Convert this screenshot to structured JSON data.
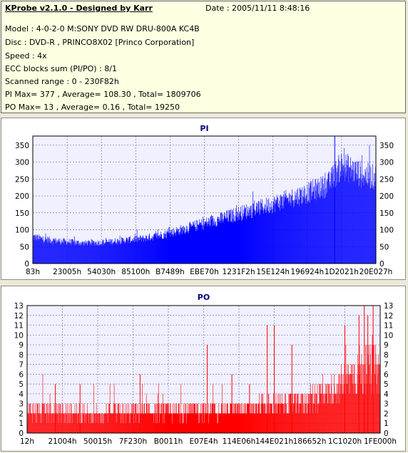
{
  "header": {
    "title": "KProbe v2.1.0 - Designed by Karr",
    "date": "Date : 2005/11/11 8:48:16",
    "lines": [
      "Model : 4-0-2-0 M:SONY     DVD RW DRU-800A  KC4B",
      "Disc : DVD-R , PRINCO8X02 [Princo Corporation]",
      "Speed : 4x",
      "ECC blocks sum (PI/PO) : 8/1",
      "Scanned range : 0 - 230F82h",
      "PI Max= 377 , Average= 108.30 , Total= 1809706",
      "PO Max= 13 , Average= 0.16 , Total= 19250"
    ]
  },
  "colors": {
    "pi": "#0000ff",
    "po": "#ff0000",
    "plot_bg": "#f0f0ff",
    "title": "#000080"
  },
  "chart_data": [
    {
      "type": "bar",
      "title": "PI",
      "ylim": [
        0,
        377
      ],
      "yticks": [
        0,
        50,
        100,
        150,
        200,
        250,
        300,
        350
      ],
      "xticks": [
        "83h",
        "23005h",
        "54030h",
        "85100h",
        "B7489h",
        "EBE70h",
        "1231F2h",
        "15E124h",
        "196924h",
        "1D2021h",
        "20E027h"
      ],
      "grid": true,
      "profile": {
        "x": [
          0.0,
          0.03,
          0.08,
          0.15,
          0.2,
          0.26,
          0.32,
          0.38,
          0.44,
          0.5,
          0.56,
          0.62,
          0.68,
          0.74,
          0.8,
          0.86,
          0.9,
          0.93,
          0.96,
          1.0
        ],
        "y": [
          82,
          74,
          68,
          62,
          64,
          70,
          76,
          88,
          105,
          122,
          140,
          158,
          175,
          195,
          215,
          240,
          300,
          285,
          270,
          262
        ]
      },
      "max": 377,
      "average": 108.3
    },
    {
      "type": "bar",
      "title": "PO",
      "ylim": [
        0,
        13
      ],
      "yticks": [
        0,
        1,
        2,
        3,
        4,
        5,
        6,
        7,
        8,
        9,
        10,
        11,
        12,
        13
      ],
      "xticks": [
        "12h",
        "21004h",
        "50015h",
        "7F230h",
        "B0011h",
        "E07E4h",
        "114E06h",
        "144E021h",
        "186652h",
        "1C1020h",
        "1FE000h"
      ],
      "grid": true,
      "profile": {
        "x": [
          0.0,
          0.2,
          0.4,
          0.6,
          0.74,
          0.8,
          0.86,
          0.9,
          0.94,
          1.0
        ],
        "y": [
          2.4,
          2.1,
          2.4,
          2.7,
          3.2,
          3.8,
          4.8,
          5.8,
          7.0,
          7.2
        ]
      },
      "spikes": [
        {
          "at": 0.08,
          "v": 5
        },
        {
          "at": 0.15,
          "v": 5
        },
        {
          "at": 0.32,
          "v": 6
        },
        {
          "at": 0.51,
          "v": 9
        },
        {
          "at": 0.58,
          "v": 6
        },
        {
          "at": 0.63,
          "v": 5
        },
        {
          "at": 0.68,
          "v": 11
        },
        {
          "at": 0.7,
          "v": 11
        },
        {
          "at": 0.75,
          "v": 9
        },
        {
          "at": 0.9,
          "v": 11
        },
        {
          "at": 0.94,
          "v": 12
        },
        {
          "at": 0.955,
          "v": 13
        },
        {
          "at": 0.965,
          "v": 12
        },
        {
          "at": 0.98,
          "v": 13
        }
      ],
      "max": 13,
      "average": 0.16
    }
  ]
}
